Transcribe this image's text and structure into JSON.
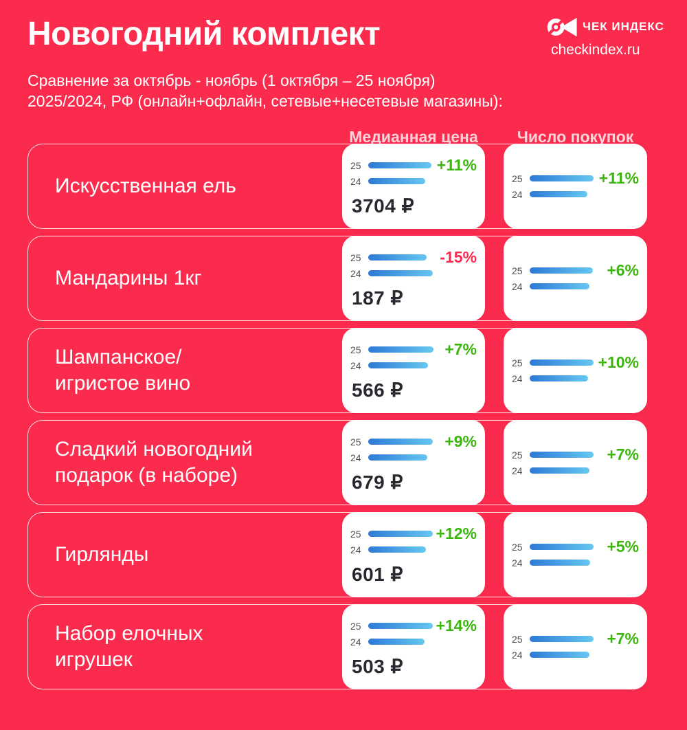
{
  "colors": {
    "background": "#FB2B4E",
    "card": "#FFFFFF",
    "text_dark": "#28282F",
    "label_gray": "#4E4E56",
    "green": "#3CB60E",
    "red": "#FB2B50",
    "bar_gradient_start": "#2E79D6",
    "bar_gradient_end": "#66C7F0"
  },
  "header": {
    "title": "Новогодний комплект",
    "logo_name": "ЧЕК ИНДЕКС",
    "logo_site": "checkindex.ru"
  },
  "subtitle": {
    "line1": "Сравнение за октябрь - ноябрь (1 октября – 25 ноября)",
    "line2": "2025/2024, РФ (онлайн+офлайн, сетевые+несетевые магазины):"
  },
  "columns": {
    "price": "Медианная цена",
    "purchases": "Число покупок"
  },
  "legend": {
    "y25": "25",
    "y24": "24"
  },
  "rows": [
    {
      "lines": [
        "Искусственная ель"
      ],
      "price": {
        "pct": "+11%",
        "positive": true,
        "value": "3704 ₽",
        "b25": 92,
        "b24": 83
      },
      "purch": {
        "pct": "+11%",
        "positive": true,
        "b25": 93,
        "b24": 84
      }
    },
    {
      "lines": [
        "Мандарины 1кг"
      ],
      "price": {
        "pct": "-15%",
        "positive": false,
        "value": "187 ₽",
        "b25": 85,
        "b24": 94
      },
      "purch": {
        "pct": "+6%",
        "positive": true,
        "b25": 92,
        "b24": 87
      }
    },
    {
      "lines": [
        "Шампанское/",
        "игристое вино"
      ],
      "price": {
        "pct": "+7%",
        "positive": true,
        "value": "566 ₽",
        "b25": 95,
        "b24": 87
      },
      "purch": {
        "pct": "+10%",
        "positive": true,
        "b25": 93,
        "b24": 85
      }
    },
    {
      "lines": [
        "Сладкий новогодний",
        "подарок (в наборе)"
      ],
      "price": {
        "pct": "+9%",
        "positive": true,
        "value": "679 ₽",
        "b25": 94,
        "b24": 86
      },
      "purch": {
        "pct": "+7%",
        "positive": true,
        "b25": 93,
        "b24": 87
      }
    },
    {
      "lines": [
        "Гирлянды"
      ],
      "price": {
        "pct": "+12%",
        "positive": true,
        "value": "601 ₽",
        "b25": 94,
        "b24": 84
      },
      "purch": {
        "pct": "+5%",
        "positive": true,
        "b25": 93,
        "b24": 88
      }
    },
    {
      "lines": [
        "Набор елочных",
        "игрушек"
      ],
      "price": {
        "pct": "+14%",
        "positive": true,
        "value": "503 ₽",
        "b25": 94,
        "b24": 82
      },
      "purch": {
        "pct": "+7%",
        "positive": true,
        "b25": 93,
        "b24": 87
      }
    }
  ],
  "chart_data": {
    "type": "bar",
    "title": "Новогодний комплект",
    "subtitle": "Сравнение за октябрь - ноябрь (1 октября – 25 ноября) 2025/2024, РФ (онлайн+офлайн, сетевые+несетевые магазины)",
    "categories": [
      "Искусственная ель",
      "Мандарины 1кг",
      "Шампанское/игристое вино",
      "Сладкий новогодний подарок (в наборе)",
      "Гирлянды",
      "Набор елочных игрушек"
    ],
    "series": [
      {
        "name": "Медианная цена 2025, ₽",
        "values": [
          3704,
          187,
          566,
          679,
          601,
          503
        ]
      },
      {
        "name": "Медианная цена, изменение % 2025/2024",
        "values": [
          11,
          -15,
          7,
          9,
          12,
          14
        ]
      },
      {
        "name": "Число покупок, изменение % 2025/2024",
        "values": [
          11,
          6,
          10,
          7,
          5,
          7
        ]
      }
    ],
    "legend": [
      "25",
      "24"
    ],
    "legend_position": "left-of-bars"
  }
}
